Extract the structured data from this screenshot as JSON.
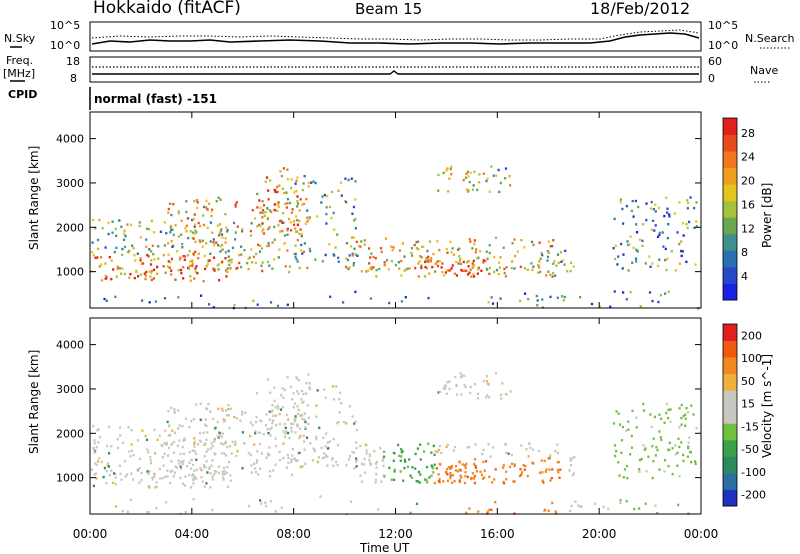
{
  "header": {
    "station": "Hokkaido (fitACF)",
    "beam": "Beam 15",
    "date": "18/Feb/2012"
  },
  "noise_panel": {
    "left_label": "N.Sky",
    "right_label": "N.Search",
    "left_ticks": [
      "10^5",
      "10^0"
    ],
    "right_ticks": [
      "10^5",
      "10^0"
    ]
  },
  "freq_panel": {
    "left_label_1": "Freq.",
    "left_label_2": "[MHz]",
    "right_label": "Nave",
    "left_ticks": [
      "18",
      "8"
    ],
    "right_ticks": [
      "60",
      "0"
    ]
  },
  "cpid_panel": {
    "label": "CPID",
    "value": "normal (fast) -151"
  },
  "time_axis": {
    "label": "Time UT",
    "ticks": [
      "00:00",
      "04:00",
      "08:00",
      "12:00",
      "16:00",
      "20:00",
      "00:00"
    ]
  },
  "chart_data": [
    {
      "type": "heatmap",
      "title": "",
      "xlabel": "Time UT",
      "ylabel": "Slant Range [km]",
      "x_ticks": [
        "00:00",
        "04:00",
        "08:00",
        "12:00",
        "16:00",
        "20:00",
        "00:00"
      ],
      "y_ticks": [
        "1000",
        "2000",
        "3000",
        "4000"
      ],
      "ylim": [
        180,
        4600
      ],
      "colorbar": {
        "label": "Power [dB]",
        "ticks": [
          "4",
          "8",
          "12",
          "16",
          "20",
          "24",
          "28"
        ],
        "colors": [
          "#1a24e0",
          "#2848c8",
          "#2a6fb4",
          "#3f8f8a",
          "#6aa84f",
          "#a3c43a",
          "#e6c420",
          "#f0a020",
          "#f07820",
          "#e84a1a",
          "#e0201a"
        ]
      }
    },
    {
      "type": "heatmap",
      "title": "",
      "xlabel": "Time UT",
      "ylabel": "Slant Range [km]",
      "x_ticks": [
        "00:00",
        "04:00",
        "08:00",
        "12:00",
        "16:00",
        "20:00",
        "00:00"
      ],
      "y_ticks": [
        "1000",
        "2000",
        "3000",
        "4000"
      ],
      "ylim": [
        180,
        4600
      ],
      "colorbar": {
        "label": "Velocity [m s^-1]",
        "ticks": [
          "200",
          "100",
          "50",
          "15",
          "-15",
          "-50",
          "-100",
          "-200"
        ],
        "colors": [
          "#2030c0",
          "#2a6fa0",
          "#2e8a5a",
          "#3aa04a",
          "#70c040",
          "#c8c8c0",
          "#c8c8c0",
          "#f0b040",
          "#f08a20",
          "#f05a10",
          "#e02020"
        ]
      }
    }
  ]
}
